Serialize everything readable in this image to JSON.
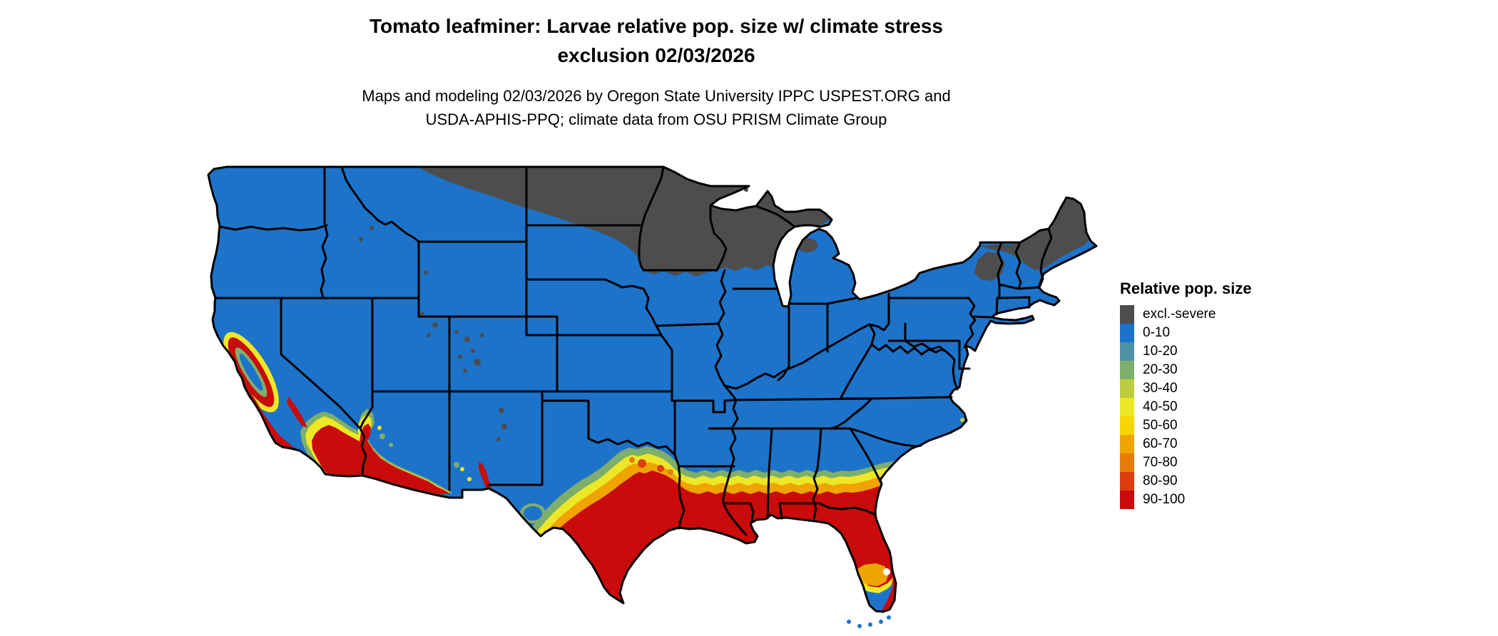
{
  "title": {
    "line1": "Tomato leafminer: Larvae relative pop. size w/ climate stress",
    "line2": "exclusion 02/03/2026"
  },
  "subtitle": {
    "line1": "Maps and modeling 02/03/2026 by Oregon State University IPPC USPEST.ORG and",
    "line2": "USDA-APHIS-PPQ; climate data from OSU PRISM Climate Group"
  },
  "legend": {
    "title": "Relative pop. size",
    "items": [
      {
        "label": "excl.-severe",
        "color": "#4D4D4D"
      },
      {
        "label": "0-10",
        "color": "#1D73C9"
      },
      {
        "label": "10-20",
        "color": "#4E90A5"
      },
      {
        "label": "20-30",
        "color": "#7EAE6C"
      },
      {
        "label": "30-40",
        "color": "#BCCE3D"
      },
      {
        "label": "40-50",
        "color": "#EDE826"
      },
      {
        "label": "50-60",
        "color": "#F7D500"
      },
      {
        "label": "60-70",
        "color": "#F0A400"
      },
      {
        "label": "70-80",
        "color": "#E97B0B"
      },
      {
        "label": "80-90",
        "color": "#DC3D0F"
      },
      {
        "label": "90-100",
        "color": "#C90B0B"
      }
    ]
  },
  "map": {
    "region": "Continental United States",
    "background": "#FFFFFF",
    "border_color": "#000000",
    "base_class": "0-10",
    "excluded_class": "excl.-severe",
    "high_class": "90-100"
  }
}
